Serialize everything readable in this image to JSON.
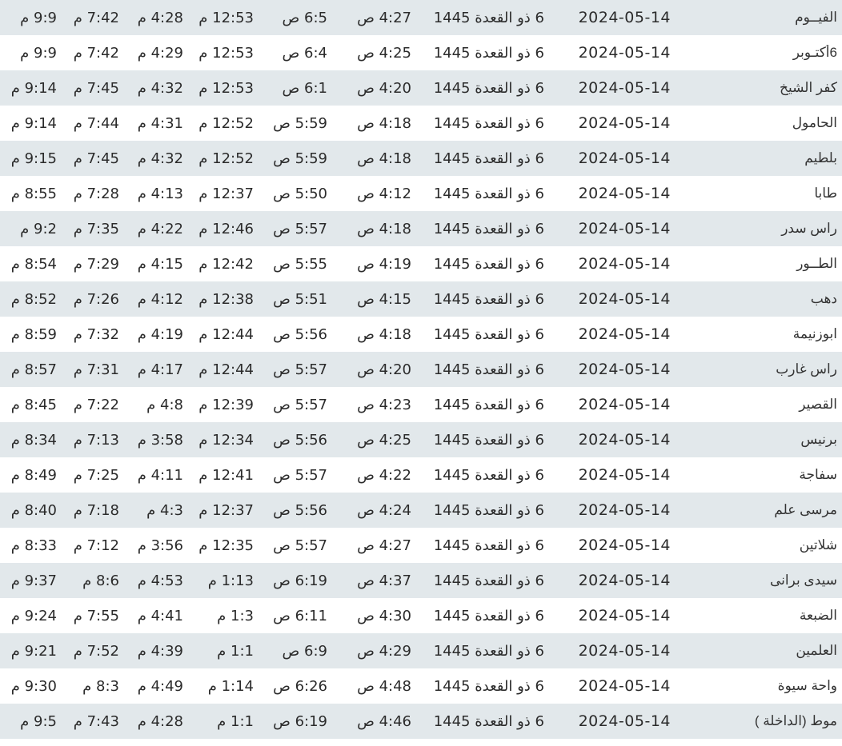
{
  "colors": {
    "row_alt": "#e2e8eb",
    "row": "#ffffff",
    "text": "#2b2b2b"
  },
  "rows": [
    {
      "city": "الفيــوم",
      "greg": "2024-05-14",
      "hijri": "6 ذو القعدة 1445",
      "fajr": "4:27 ص",
      "sunrise": "6:5 ص",
      "dhuhr": "12:53 م",
      "asr": "4:28 م",
      "maghrib": "7:42 م",
      "isha": "9:9 م"
    },
    {
      "city": "6أكتـوبر",
      "greg": "2024-05-14",
      "hijri": "6 ذو القعدة 1445",
      "fajr": "4:25 ص",
      "sunrise": "6:4 ص",
      "dhuhr": "12:53 م",
      "asr": "4:29 م",
      "maghrib": "7:42 م",
      "isha": "9:9 م"
    },
    {
      "city": "كفر الشيخ",
      "greg": "2024-05-14",
      "hijri": "6 ذو القعدة 1445",
      "fajr": "4:20 ص",
      "sunrise": "6:1 ص",
      "dhuhr": "12:53 م",
      "asr": "4:32 م",
      "maghrib": "7:45 م",
      "isha": "9:14 م"
    },
    {
      "city": "الحامول",
      "greg": "2024-05-14",
      "hijri": "6 ذو القعدة 1445",
      "fajr": "4:18 ص",
      "sunrise": "5:59 ص",
      "dhuhr": "12:52 م",
      "asr": "4:31 م",
      "maghrib": "7:44 م",
      "isha": "9:14 م"
    },
    {
      "city": "بلطيم",
      "greg": "2024-05-14",
      "hijri": "6 ذو القعدة 1445",
      "fajr": "4:18 ص",
      "sunrise": "5:59 ص",
      "dhuhr": "12:52 م",
      "asr": "4:32 م",
      "maghrib": "7:45 م",
      "isha": "9:15 م"
    },
    {
      "city": "طابا",
      "greg": "2024-05-14",
      "hijri": "6 ذو القعدة 1445",
      "fajr": "4:12 ص",
      "sunrise": "5:50 ص",
      "dhuhr": "12:37 م",
      "asr": "4:13 م",
      "maghrib": "7:28 م",
      "isha": "8:55 م"
    },
    {
      "city": "راس سدر",
      "greg": "2024-05-14",
      "hijri": "6 ذو القعدة 1445",
      "fajr": "4:18 ص",
      "sunrise": "5:57 ص",
      "dhuhr": "12:46 م",
      "asr": "4:22 م",
      "maghrib": "7:35 م",
      "isha": "9:2 م"
    },
    {
      "city": "الطــور",
      "greg": "2024-05-14",
      "hijri": "6 ذو القعدة 1445",
      "fajr": "4:19 ص",
      "sunrise": "5:55 ص",
      "dhuhr": "12:42 م",
      "asr": "4:15 م",
      "maghrib": "7:29 م",
      "isha": "8:54 م"
    },
    {
      "city": "دهب",
      "greg": "2024-05-14",
      "hijri": "6 ذو القعدة 1445",
      "fajr": "4:15 ص",
      "sunrise": "5:51 ص",
      "dhuhr": "12:38 م",
      "asr": "4:12 م",
      "maghrib": "7:26 م",
      "isha": "8:52 م"
    },
    {
      "city": "ابوزنيمة",
      "greg": "2024-05-14",
      "hijri": "6 ذو القعدة 1445",
      "fajr": "4:18 ص",
      "sunrise": "5:56 ص",
      "dhuhr": "12:44 م",
      "asr": "4:19 م",
      "maghrib": "7:32 م",
      "isha": "8:59 م"
    },
    {
      "city": "راس غارب",
      "greg": "2024-05-14",
      "hijri": "6 ذو القعدة 1445",
      "fajr": "4:20 ص",
      "sunrise": "5:57 ص",
      "dhuhr": "12:44 م",
      "asr": "4:17 م",
      "maghrib": "7:31 م",
      "isha": "8:57 م"
    },
    {
      "city": "القصير",
      "greg": "2024-05-14",
      "hijri": "6 ذو القعدة 1445",
      "fajr": "4:23 ص",
      "sunrise": "5:57 ص",
      "dhuhr": "12:39 م",
      "asr": "4:8 م",
      "maghrib": "7:22 م",
      "isha": "8:45 م"
    },
    {
      "city": "برنيس",
      "greg": "2024-05-14",
      "hijri": "6 ذو القعدة 1445",
      "fajr": "4:25 ص",
      "sunrise": "5:56 ص",
      "dhuhr": "12:34 م",
      "asr": "3:58 م",
      "maghrib": "7:13 م",
      "isha": "8:34 م"
    },
    {
      "city": "سفاجة",
      "greg": "2024-05-14",
      "hijri": "6 ذو القعدة 1445",
      "fajr": "4:22 ص",
      "sunrise": "5:57 ص",
      "dhuhr": "12:41 م",
      "asr": "4:11 م",
      "maghrib": "7:25 م",
      "isha": "8:49 م"
    },
    {
      "city": "مرسى علم",
      "greg": "2024-05-14",
      "hijri": "6 ذو القعدة 1445",
      "fajr": "4:24 ص",
      "sunrise": "5:56 ص",
      "dhuhr": "12:37 م",
      "asr": "4:3 م",
      "maghrib": "7:18 م",
      "isha": "8:40 م"
    },
    {
      "city": "شلاتين",
      "greg": "2024-05-14",
      "hijri": "6 ذو القعدة 1445",
      "fajr": "4:27 ص",
      "sunrise": "5:57 ص",
      "dhuhr": "12:35 م",
      "asr": "3:56 م",
      "maghrib": "7:12 م",
      "isha": "8:33 م"
    },
    {
      "city": "سيدى برانى",
      "greg": "2024-05-14",
      "hijri": "6 ذو القعدة 1445",
      "fajr": "4:37 ص",
      "sunrise": "6:19 ص",
      "dhuhr": "1:13 م",
      "asr": "4:53 م",
      "maghrib": "8:6 م",
      "isha": "9:37 م"
    },
    {
      "city": "الضبعة",
      "greg": "2024-05-14",
      "hijri": "6 ذو القعدة 1445",
      "fajr": "4:30 ص",
      "sunrise": "6:11 ص",
      "dhuhr": "1:3 م",
      "asr": "4:41 م",
      "maghrib": "7:55 م",
      "isha": "9:24 م"
    },
    {
      "city": "العلمين",
      "greg": "2024-05-14",
      "hijri": "6 ذو القعدة 1445",
      "fajr": "4:29 ص",
      "sunrise": "6:9 ص",
      "dhuhr": "1:1 م",
      "asr": "4:39 م",
      "maghrib": "7:52 م",
      "isha": "9:21 م"
    },
    {
      "city": "واحة سيوة",
      "greg": "2024-05-14",
      "hijri": "6 ذو القعدة 1445",
      "fajr": "4:48 ص",
      "sunrise": "6:26 ص",
      "dhuhr": "1:14 م",
      "asr": "4:49 م",
      "maghrib": "8:3 م",
      "isha": "9:30 م"
    },
    {
      "city": "موط (الداخلة )",
      "greg": "2024-05-14",
      "hijri": "6 ذو القعدة 1445",
      "fajr": "4:46 ص",
      "sunrise": "6:19 ص",
      "dhuhr": "1:1 م",
      "asr": "4:28 م",
      "maghrib": "7:43 م",
      "isha": "9:5 م"
    }
  ]
}
